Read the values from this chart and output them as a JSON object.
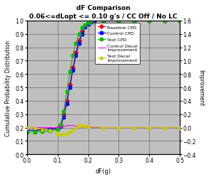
{
  "title": "dF Comparison",
  "subtitle": "0.06<=dLopt <= 0.10 g's / CC Off / No LC",
  "xlabel": "dF(g)",
  "ylabel_left": "Cumulative Probability Distribution",
  "ylabel_right": "Improvement",
  "xlim": [
    0.0,
    0.5
  ],
  "ylim_left": [
    0.0,
    1.0
  ],
  "ylim_right": [
    -0.4,
    1.6
  ],
  "bg_color": "#c0c0c0",
  "baseline_cpd_x": [
    0.0,
    0.025,
    0.05,
    0.075,
    0.1,
    0.11,
    0.12,
    0.13,
    0.14,
    0.15,
    0.16,
    0.17,
    0.18,
    0.19,
    0.2,
    0.21,
    0.22,
    0.25,
    0.3,
    0.35,
    0.4,
    0.45,
    0.5
  ],
  "baseline_cpd_y": [
    0.18,
    0.18,
    0.185,
    0.19,
    0.195,
    0.22,
    0.3,
    0.4,
    0.52,
    0.65,
    0.76,
    0.85,
    0.92,
    0.96,
    0.985,
    0.995,
    0.999,
    1.0,
    1.0,
    1.0,
    1.0,
    1.0,
    1.0
  ],
  "control_cpd_x": [
    0.0,
    0.025,
    0.05,
    0.075,
    0.1,
    0.11,
    0.12,
    0.13,
    0.14,
    0.15,
    0.16,
    0.17,
    0.18,
    0.19,
    0.2,
    0.21,
    0.22,
    0.25,
    0.3,
    0.35,
    0.4,
    0.45,
    0.5
  ],
  "control_cpd_y": [
    0.18,
    0.18,
    0.183,
    0.188,
    0.193,
    0.21,
    0.28,
    0.38,
    0.5,
    0.63,
    0.74,
    0.83,
    0.9,
    0.95,
    0.975,
    0.99,
    0.997,
    1.0,
    1.0,
    1.0,
    1.0,
    1.0,
    1.0
  ],
  "test_cpd_x": [
    0.0,
    0.025,
    0.05,
    0.075,
    0.1,
    0.11,
    0.12,
    0.13,
    0.14,
    0.15,
    0.16,
    0.17,
    0.18,
    0.19,
    0.2,
    0.21,
    0.25,
    0.3,
    0.35,
    0.4,
    0.45,
    0.5
  ],
  "test_cpd_y": [
    0.165,
    0.167,
    0.17,
    0.175,
    0.185,
    0.22,
    0.32,
    0.47,
    0.62,
    0.74,
    0.83,
    0.9,
    0.945,
    0.97,
    0.985,
    0.995,
    1.0,
    1.0,
    1.0,
    1.0,
    1.0,
    1.0
  ],
  "control_decel_x": [
    0.0,
    0.025,
    0.05,
    0.075,
    0.1,
    0.11,
    0.12,
    0.13,
    0.14,
    0.15,
    0.16,
    0.17,
    0.18,
    0.19,
    0.2,
    0.25,
    0.3,
    0.35,
    0.4,
    0.45,
    0.5
  ],
  "control_decel_y": [
    0.0,
    0.0,
    0.0,
    0.0,
    0.0,
    0.0,
    0.02,
    0.03,
    0.03,
    0.03,
    0.02,
    0.02,
    0.01,
    0.01,
    0.01,
    0.0,
    0.0,
    0.0,
    0.0,
    0.0,
    0.0
  ],
  "test_decel_x": [
    0.0,
    0.025,
    0.05,
    0.075,
    0.1,
    0.11,
    0.12,
    0.13,
    0.14,
    0.15,
    0.16,
    0.17,
    0.18,
    0.19,
    0.2,
    0.25,
    0.3,
    0.35,
    0.4,
    0.45,
    0.5
  ],
  "test_decel_y": [
    0.0,
    0.0,
    -0.02,
    -0.04,
    -0.08,
    -0.1,
    -0.1,
    -0.09,
    -0.06,
    -0.04,
    0.0,
    0.04,
    0.04,
    0.03,
    0.02,
    0.0,
    0.0,
    0.0,
    0.0,
    0.0,
    0.0
  ],
  "baseline_color": "#ff0000",
  "control_cpd_color": "#0000ff",
  "test_cpd_color": "#00bb00",
  "control_decel_color": "#ff00ff",
  "test_decel_color": "#cccc00",
  "legend_labels": [
    "Baseline CPD",
    "Control CPD",
    "Test CPD",
    "Control Decel\nImprovement",
    "Test Decel\nImprovement"
  ]
}
